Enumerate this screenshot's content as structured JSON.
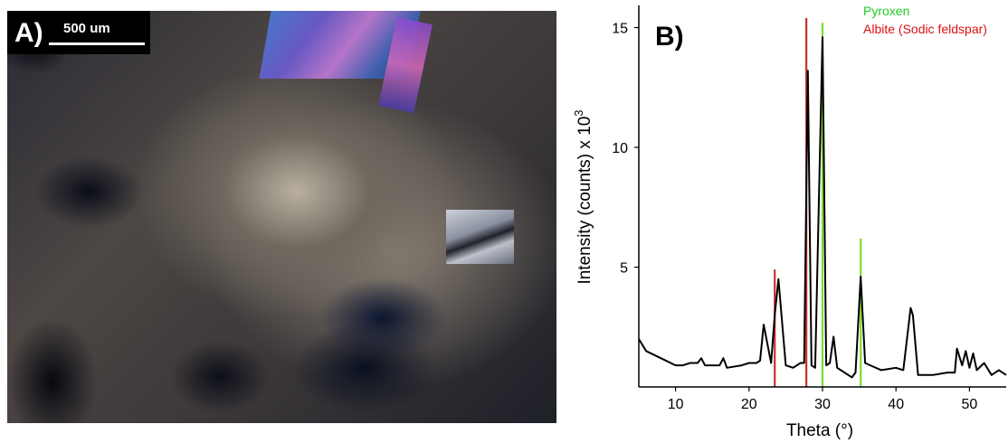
{
  "panel_a": {
    "label": "A)",
    "scale_bar_text": "500 um"
  },
  "panel_b": {
    "label": "B)"
  },
  "chart_data": {
    "type": "line",
    "title": "",
    "xlabel": "Theta (°)",
    "ylabel": "Intensity (counts) x 10",
    "ylabel_superscript": "3",
    "xlim": [
      5,
      55
    ],
    "ylim": [
      0,
      16
    ],
    "x_ticks": [
      10,
      20,
      30,
      40,
      50
    ],
    "y_ticks": [
      5,
      10,
      15
    ],
    "grid": false,
    "legend_placement": "top-right",
    "series": [
      {
        "color": "#000000",
        "x": [
          5,
          6,
          8,
          10,
          11,
          12,
          13,
          13.5,
          14,
          15,
          16,
          16.5,
          17,
          19,
          20,
          21,
          21.5,
          22,
          23,
          23.5,
          24,
          25,
          26,
          27,
          27.5,
          28,
          28.5,
          29,
          30,
          30.5,
          31,
          31.5,
          32,
          33,
          34,
          34.5,
          35.2,
          35.8,
          36.5,
          38,
          40,
          41,
          42,
          42.3,
          43,
          45,
          47,
          48,
          48.3,
          49,
          49.5,
          50,
          50.5,
          51,
          52,
          53,
          54,
          55
        ],
        "y": [
          2.0,
          1.5,
          1.2,
          0.9,
          0.9,
          1.0,
          1.0,
          1.2,
          0.9,
          0.9,
          0.9,
          1.2,
          0.8,
          0.9,
          1.0,
          1.0,
          1.1,
          2.6,
          1.0,
          3.0,
          4.5,
          0.9,
          0.8,
          1.0,
          1.0,
          13.2,
          0.9,
          0.8,
          14.6,
          0.9,
          1.0,
          2.1,
          0.8,
          0.6,
          0.4,
          0.6,
          4.6,
          1.0,
          0.9,
          0.7,
          0.8,
          0.7,
          3.3,
          3.0,
          0.5,
          0.5,
          0.6,
          0.6,
          1.6,
          0.9,
          1.5,
          0.8,
          1.4,
          0.7,
          1.0,
          0.5,
          0.7,
          0.5
        ]
      }
    ],
    "reference_lines": [
      {
        "name": "Pyroxen",
        "color": "#7ddc2a",
        "legend_color": "#22cc22",
        "positions": [
          {
            "x": 30,
            "height": 15.2
          },
          {
            "x": 35.2,
            "height": 6.2
          }
        ]
      },
      {
        "name": "Albite (Sodic feldspar)",
        "color": "#c9302c",
        "legend_color": "#dd1111",
        "positions": [
          {
            "x": 23.5,
            "height": 4.9
          },
          {
            "x": 27.8,
            "height": 15.4
          }
        ]
      }
    ]
  }
}
